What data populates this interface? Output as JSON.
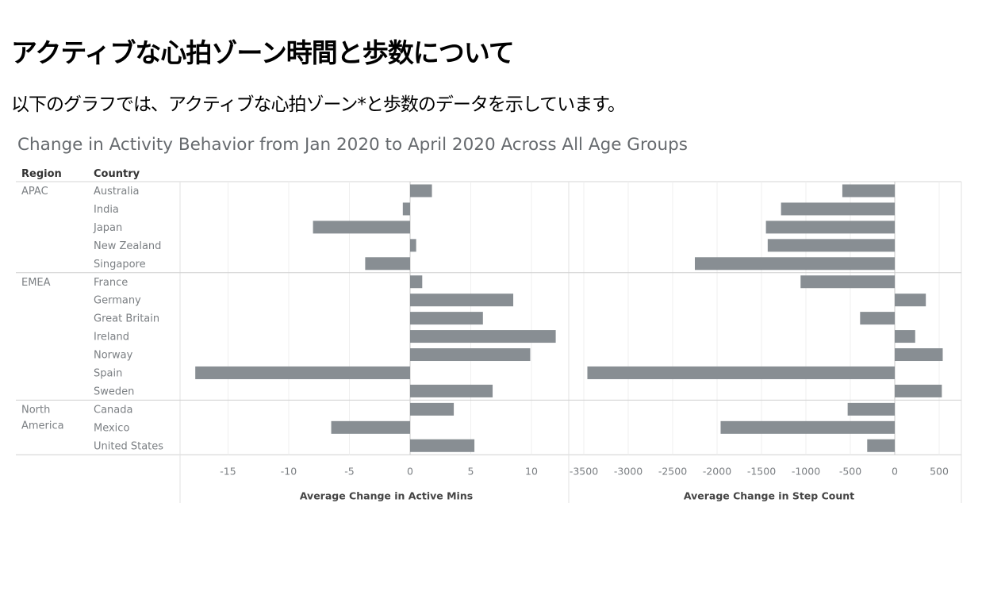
{
  "page": {
    "heading": "アクティブな心拍ゾーン時間と歩数について",
    "intro": "以下のグラフでは、アクティブな心拍ゾーン*と歩数のデータを示しています。"
  },
  "chart_data": {
    "type": "bar",
    "orientation": "horizontal",
    "title": "Change in Activity Behavior from Jan 2020 to April 2020 Across All Age Groups",
    "row_headers": [
      "Region",
      "Country"
    ],
    "groups": [
      {
        "region": "APAC",
        "countries": [
          "Australia",
          "India",
          "Japan",
          "New Zealand",
          "Singapore"
        ]
      },
      {
        "region": "EMEA",
        "countries": [
          "France",
          "Germany",
          "Great Britain",
          "Ireland",
          "Norway",
          "Spain",
          "Sweden"
        ]
      },
      {
        "region": "North America",
        "countries": [
          "Canada",
          "Mexico",
          "United States"
        ]
      }
    ],
    "categories": [
      "Australia",
      "India",
      "Japan",
      "New Zealand",
      "Singapore",
      "France",
      "Germany",
      "Great Britain",
      "Ireland",
      "Norway",
      "Spain",
      "Sweden",
      "Canada",
      "Mexico",
      "United States"
    ],
    "panels": [
      {
        "xlabel": "Average Change in Active Mins",
        "xlim": [
          -18,
          18
        ],
        "ticks": [
          -15,
          -10,
          -5,
          0,
          5,
          10
        ],
        "values": [
          1.8,
          -0.6,
          -8.0,
          0.5,
          -3.7,
          1.0,
          8.5,
          6.0,
          12.0,
          9.9,
          -17.7,
          6.8,
          3.6,
          -6.5,
          5.3
        ]
      },
      {
        "xlabel": "Average Change in Step Count",
        "xlim": [
          -3600,
          750
        ],
        "ticks": [
          -3500,
          -3000,
          -2500,
          -2000,
          -1500,
          -1000,
          -500,
          0,
          500
        ],
        "values": [
          -590,
          -1280,
          -1450,
          -1430,
          -2250,
          -1060,
          350,
          -390,
          230,
          540,
          -3460,
          530,
          -530,
          -1960,
          -310
        ]
      }
    ],
    "bar_color": "#888e93",
    "grid": true,
    "legend": "none"
  }
}
